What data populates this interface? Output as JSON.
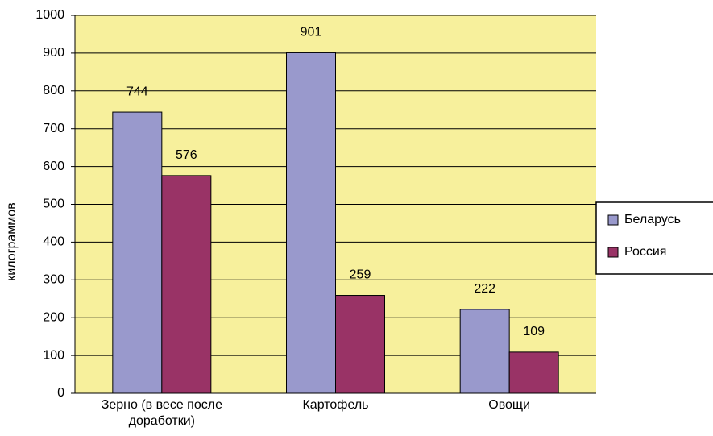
{
  "chart_data": {
    "type": "bar",
    "y_label": "килограммов",
    "categories": [
      "Зерно (в весе после доработки)",
      "Картофель",
      "Овощи"
    ],
    "series": [
      {
        "name": "Беларусь",
        "color": "#9999cc",
        "values": [
          744,
          901,
          222
        ]
      },
      {
        "name": "Россия",
        "color": "#993366",
        "values": [
          576,
          259,
          109
        ]
      }
    ],
    "ylim": [
      0,
      1000
    ],
    "yticks": [
      0,
      100,
      200,
      300,
      400,
      500,
      600,
      700,
      800,
      900,
      1000
    ],
    "grid": true,
    "legend": "right",
    "plot_background": "#f7f09c"
  }
}
